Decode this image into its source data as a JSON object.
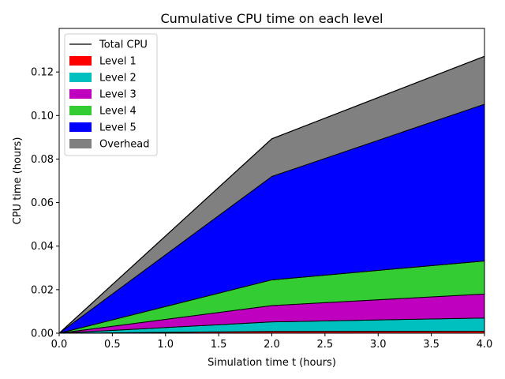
{
  "chart_data": {
    "type": "area",
    "title": "Cumulative CPU time on each level",
    "xlabel": "Simulation time t (hours)",
    "ylabel": "CPU time (hours)",
    "xlim": [
      0,
      4
    ],
    "ylim": [
      0,
      0.14
    ],
    "x": [
      0,
      2,
      4
    ],
    "xticks": [
      "0.0",
      "0.5",
      "1.0",
      "1.5",
      "2.0",
      "2.5",
      "3.0",
      "3.5",
      "4.0"
    ],
    "xtick_values": [
      0,
      0.5,
      1,
      1.5,
      2,
      2.5,
      3,
      3.5,
      4
    ],
    "yticks": [
      "0.00",
      "0.02",
      "0.04",
      "0.06",
      "0.08",
      "0.10",
      "0.12"
    ],
    "ytick_values": [
      0,
      0.02,
      0.04,
      0.06,
      0.08,
      0.1,
      0.12
    ],
    "stacked": true,
    "grid": false,
    "legend_position": "top-left",
    "total": {
      "name": "Total CPU",
      "values": [
        0,
        0.0893,
        0.1272
      ],
      "color": "#000000"
    },
    "series": [
      {
        "name": "Level 1",
        "values": [
          0,
          0.0008,
          0.0009
        ],
        "color": "#ff0000"
      },
      {
        "name": "Level 2",
        "values": [
          0,
          0.0044,
          0.0061
        ],
        "color": "#00bfbf"
      },
      {
        "name": "Level 3",
        "values": [
          0,
          0.0075,
          0.011
        ],
        "color": "#bf00bf"
      },
      {
        "name": "Level 4",
        "values": [
          0,
          0.0118,
          0.0152
        ],
        "color": "#33cc33"
      },
      {
        "name": "Level 5",
        "values": [
          0,
          0.0475,
          0.072
        ],
        "color": "#0000ff"
      },
      {
        "name": "Overhead",
        "values": [
          0,
          0.0173,
          0.022
        ],
        "color": "#808080"
      }
    ]
  }
}
